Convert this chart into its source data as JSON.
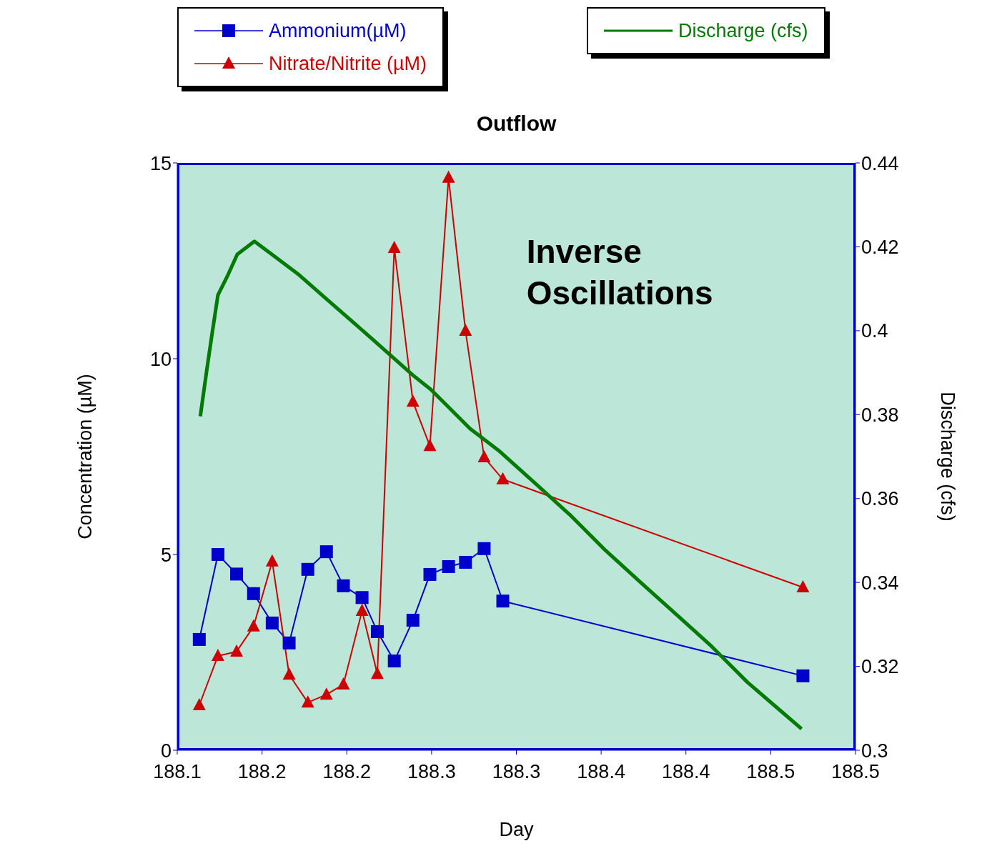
{
  "chart_data": {
    "type": "line",
    "title": "Outflow",
    "xlabel": "Day",
    "ylabel": "Concentration (µM)",
    "y2label": "Discharge (cfs)",
    "annotations": [
      "Inverse Oscillations"
    ],
    "x": [
      188.113,
      188.124,
      188.135,
      188.145,
      188.156,
      188.166,
      188.177,
      188.188,
      188.198,
      188.209,
      188.218,
      188.228,
      188.239,
      188.249,
      188.26,
      188.27,
      188.281,
      188.292,
      188.469
    ],
    "series": [
      {
        "name": "Ammonium(µM)",
        "color": "#0000cc",
        "marker": "square",
        "values": [
          2.83,
          5.0,
          4.5,
          4.0,
          3.25,
          2.74,
          4.62,
          5.07,
          4.2,
          3.9,
          3.03,
          2.28,
          3.32,
          4.49,
          4.69,
          4.8,
          5.15,
          3.81,
          1.9
        ]
      },
      {
        "name": "Nitrate/Nitrite (µM)",
        "color": "#cc0000",
        "marker": "triangle",
        "values": [
          1.15,
          2.41,
          2.52,
          3.16,
          4.82,
          1.93,
          1.22,
          1.42,
          1.68,
          3.56,
          1.95,
          12.83,
          8.9,
          7.77,
          14.62,
          10.71,
          7.48,
          6.92,
          4.16
        ]
      },
      {
        "name": "Discharge (cfs)",
        "color": "#007a00",
        "marker": "none",
        "axis": "y2",
        "x": [
          188.1136,
          188.1173,
          188.1207,
          188.124,
          188.1299,
          188.1354,
          188.1455,
          188.1551,
          188.1719,
          188.1887,
          188.2055,
          188.2223,
          188.239,
          188.2495,
          188.2642,
          188.2726,
          188.2894,
          188.3104,
          188.3314,
          188.3524,
          188.3733,
          188.3943,
          188.4153,
          188.4363,
          188.4573,
          188.4682
        ],
        "values": [
          0.3796,
          0.3903,
          0.3997,
          0.4085,
          0.4133,
          0.4182,
          0.4213,
          0.4184,
          0.4133,
          0.4073,
          0.4014,
          0.3954,
          0.3894,
          0.386,
          0.3801,
          0.3767,
          0.3715,
          0.3639,
          0.3562,
          0.3477,
          0.34,
          0.3324,
          0.3247,
          0.3162,
          0.3089,
          0.3051
        ]
      }
    ],
    "xlim": [
      188.1,
      188.5
    ],
    "xticks": [
      188.1,
      {
        "value": 188.15,
        "label": "188.2"
      },
      188.2,
      {
        "value": 188.25,
        "label": "188.3"
      },
      188.3,
      {
        "value": 188.35,
        "label": "188.4"
      },
      188.4,
      {
        "value": 188.45,
        "label": "188.5"
      },
      188.5
    ],
    "ylim": [
      0,
      15
    ],
    "yticks": [
      0,
      5,
      10,
      15
    ],
    "y2lim": [
      0.3,
      0.44
    ],
    "y2ticks": [
      0.3,
      0.32,
      0.34,
      0.36,
      0.38,
      0.4,
      0.42,
      0.44
    ],
    "legend": "top"
  }
}
